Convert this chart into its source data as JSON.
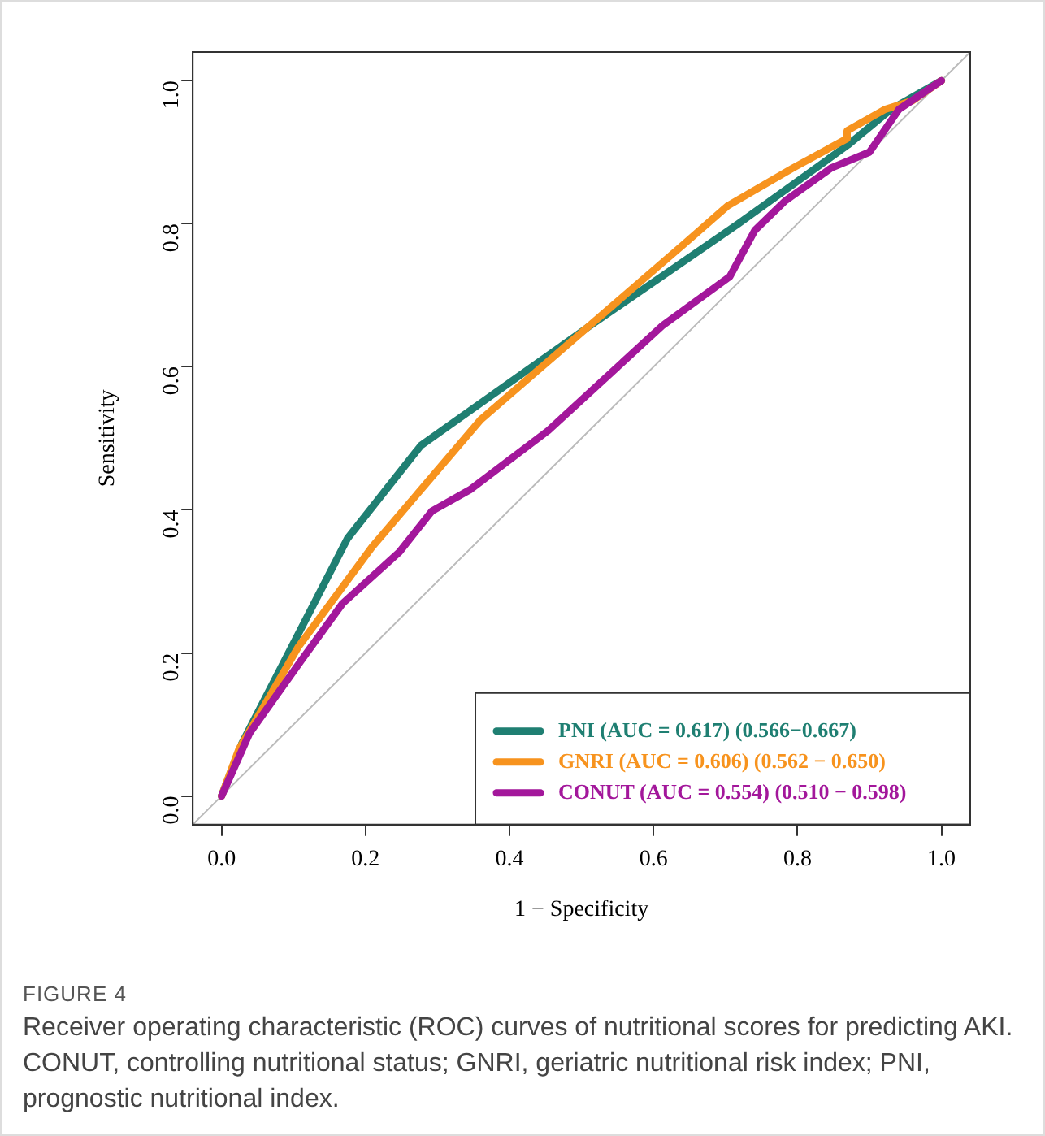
{
  "chart_data": {
    "type": "line",
    "xlabel": "1 − Specificity",
    "ylabel": "Sensitivity",
    "xlim": [
      -0.04,
      1.04
    ],
    "ylim": [
      -0.04,
      1.04
    ],
    "xticks": [
      {
        "value": 0,
        "label": "0.0"
      },
      {
        "value": 0.2,
        "label": "0.2"
      },
      {
        "value": 0.4,
        "label": "0.4"
      },
      {
        "value": 0.6,
        "label": "0.6"
      },
      {
        "value": 0.8,
        "label": "0.8"
      },
      {
        "value": 1,
        "label": "1.0"
      }
    ],
    "yticks": [
      {
        "value": 0,
        "label": "0.0"
      },
      {
        "value": 0.2,
        "label": "0.2"
      },
      {
        "value": 0.4,
        "label": "0.4"
      },
      {
        "value": 0.6,
        "label": "0.6"
      },
      {
        "value": 0.8,
        "label": "0.8"
      },
      {
        "value": 1,
        "label": "1.0"
      }
    ],
    "grid": false,
    "legend": "bottom right",
    "marker": "none",
    "line_style": "solid",
    "series": [
      {
        "color": "#bbbbbb",
        "x": [
          -0.04,
          1.04
        ],
        "values": [
          -0.04,
          1.04
        ]
      },
      {
        "name": "PNI (AUC = 0.617) (0.566−0.667)",
        "color": "#1f7f72",
        "x": [
          0,
          0.028,
          0.175,
          0.277,
          0.507,
          0.718,
          0.87,
          0.93,
          1
        ],
        "values": [
          0,
          0.073,
          0.36,
          0.49,
          0.654,
          0.8,
          0.91,
          0.96,
          1
        ]
      },
      {
        "name": "GNRI (AUC = 0.606) (0.562 − 0.650)",
        "color": "#f7931e",
        "x": [
          0,
          0.024,
          0.107,
          0.209,
          0.36,
          0.507,
          0.643,
          0.703,
          0.794,
          0.869,
          0.869,
          0.922,
          0.96,
          1
        ],
        "values": [
          0,
          0.065,
          0.209,
          0.348,
          0.526,
          0.654,
          0.772,
          0.825,
          0.878,
          0.919,
          0.93,
          0.96,
          0.972,
          1
        ]
      },
      {
        "name": "CONUT (AUC = 0.554) (0.510 − 0.598)",
        "color": "#a3179b",
        "x": [
          0,
          0.039,
          0.111,
          0.168,
          0.247,
          0.292,
          0.345,
          0.454,
          0.613,
          0.706,
          0.741,
          0.783,
          0.847,
          0.9,
          0.941,
          1
        ],
        "values": [
          0,
          0.088,
          0.19,
          0.269,
          0.341,
          0.398,
          0.428,
          0.511,
          0.658,
          0.726,
          0.791,
          0.832,
          0.878,
          0.9,
          0.96,
          1
        ]
      }
    ],
    "annotations": [
      "FIGURE 4",
      "Receiver operating characteristic (ROC) curves of nutritional scores for predicting AKI. CONUT, controlling nutritional status; GNRI, geriatric nutritional risk index; PNI, prognostic nutritional index."
    ]
  }
}
